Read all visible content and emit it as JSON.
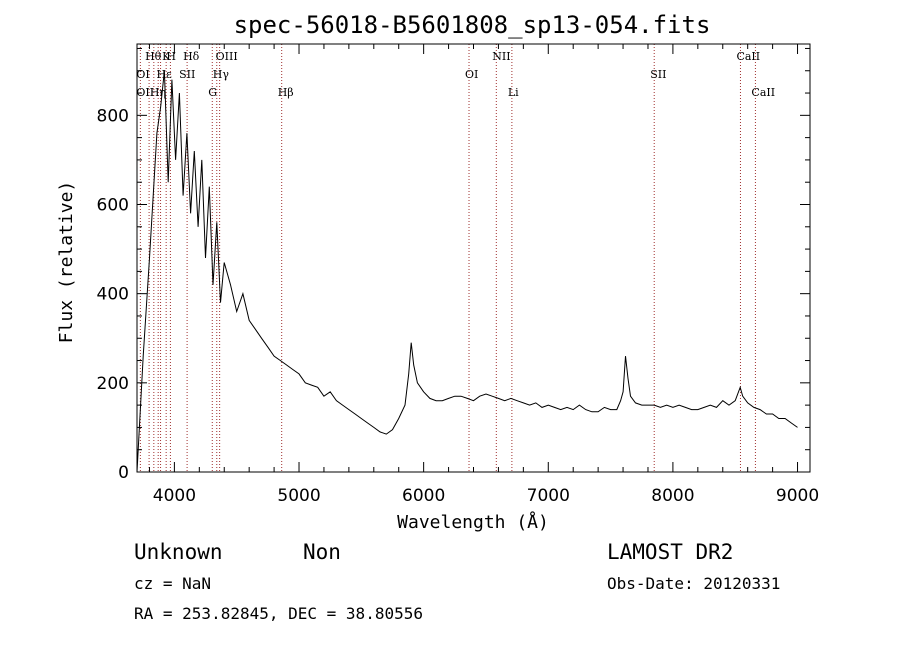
{
  "chart_data": {
    "type": "line",
    "title": "spec-56018-B5601808_sp13-054.fits",
    "xlabel": "Wavelength (Å)",
    "ylabel": "Flux (relative)",
    "xlim": [
      3700,
      9100
    ],
    "ylim": [
      0,
      960
    ],
    "x_ticks": [
      4000,
      5000,
      6000,
      7000,
      8000,
      9000
    ],
    "y_ticks": [
      0,
      200,
      400,
      600,
      800
    ],
    "grid": false,
    "series": [
      {
        "x": [
          3700,
          3750,
          3800,
          3830,
          3860,
          3890,
          3920,
          3950,
          3980,
          4010,
          4040,
          4070,
          4100,
          4130,
          4160,
          4190,
          4220,
          4250,
          4280,
          4310,
          4340,
          4370,
          4400,
          4450,
          4500,
          4550,
          4600,
          4650,
          4700,
          4750,
          4800,
          4850,
          4900,
          4950,
          5000,
          5050,
          5100,
          5150,
          5200,
          5250,
          5300,
          5350,
          5400,
          5450,
          5500,
          5550,
          5600,
          5650,
          5700,
          5750,
          5800,
          5850,
          5880,
          5900,
          5920,
          5950,
          6000,
          6050,
          6100,
          6150,
          6200,
          6250,
          6300,
          6350,
          6400,
          6450,
          6500,
          6550,
          6600,
          6650,
          6700,
          6750,
          6800,
          6850,
          6900,
          6950,
          7000,
          7050,
          7100,
          7150,
          7200,
          7250,
          7300,
          7350,
          7400,
          7450,
          7500,
          7550,
          7580,
          7600,
          7620,
          7640,
          7660,
          7700,
          7750,
          7800,
          7850,
          7900,
          7950,
          8000,
          8050,
          8100,
          8150,
          8200,
          8250,
          8300,
          8350,
          8400,
          8450,
          8500,
          8540,
          8560,
          8600,
          8650,
          8700,
          8750,
          8800,
          8850,
          8900,
          8950,
          9000
        ],
        "y": [
          0,
          260,
          480,
          620,
          760,
          820,
          900,
          650,
          880,
          700,
          850,
          620,
          760,
          580,
          720,
          550,
          700,
          480,
          640,
          420,
          560,
          380,
          470,
          420,
          360,
          400,
          340,
          320,
          300,
          280,
          260,
          250,
          240,
          230,
          220,
          200,
          195,
          190,
          170,
          180,
          160,
          150,
          140,
          130,
          120,
          110,
          100,
          90,
          85,
          95,
          120,
          150,
          220,
          290,
          240,
          200,
          180,
          165,
          160,
          160,
          165,
          170,
          170,
          165,
          160,
          170,
          175,
          170,
          165,
          160,
          165,
          160,
          155,
          150,
          155,
          145,
          150,
          145,
          140,
          145,
          140,
          150,
          140,
          135,
          135,
          145,
          140,
          140,
          160,
          180,
          260,
          210,
          170,
          155,
          150,
          150,
          150,
          145,
          150,
          145,
          150,
          145,
          140,
          140,
          145,
          150,
          145,
          160,
          150,
          160,
          190,
          170,
          155,
          145,
          140,
          130,
          130,
          120,
          120,
          110,
          100
        ]
      }
    ],
    "line_labels": [
      {
        "text": "Hθ",
        "wl": 3797,
        "row": 1
      },
      {
        "text": "K",
        "wl": 3934,
        "row": 1
      },
      {
        "text": "H",
        "wl": 3968,
        "row": 1
      },
      {
        "text": "Hδ",
        "wl": 4102,
        "row": 1
      },
      {
        "text": "OIII",
        "wl": 4363,
        "row": 1
      },
      {
        "text": "NII",
        "wl": 6583,
        "row": 1
      },
      {
        "text": "CaII",
        "wl": 8542,
        "row": 1
      },
      {
        "text": "OI",
        "wl": 3727,
        "row": 2
      },
      {
        "text": "Hε",
        "wl": 3889,
        "row": 2
      },
      {
        "text": "SII",
        "wl": 4070,
        "row": 2
      },
      {
        "text": "Hγ",
        "wl": 4340,
        "row": 2
      },
      {
        "text": "OI",
        "wl": 6364,
        "row": 2
      },
      {
        "text": "SII",
        "wl": 7850,
        "row": 2
      },
      {
        "text": "OII",
        "wl": 3727,
        "row": 3
      },
      {
        "text": "Hη",
        "wl": 3835,
        "row": 3
      },
      {
        "text": "G",
        "wl": 4304,
        "row": 3
      },
      {
        "text": "Hβ",
        "wl": 4861,
        "row": 3
      },
      {
        "text": "Li",
        "wl": 6708,
        "row": 3
      },
      {
        "text": "CaII",
        "wl": 8662,
        "row": 3
      }
    ],
    "line_markers_wl": [
      3727,
      3797,
      3835,
      3870,
      3889,
      3934,
      3968,
      4102,
      4304,
      4340,
      4363,
      4861,
      6364,
      6583,
      6708,
      7850,
      8542,
      8662
    ]
  },
  "info": {
    "object_class": "Unknown",
    "object_subclass": "Non",
    "survey": "LAMOST DR2",
    "cz": "cz = NaN",
    "obs_date": "Obs-Date: 20120331",
    "coords": "RA = 253.82845, DEC =  38.80556"
  }
}
